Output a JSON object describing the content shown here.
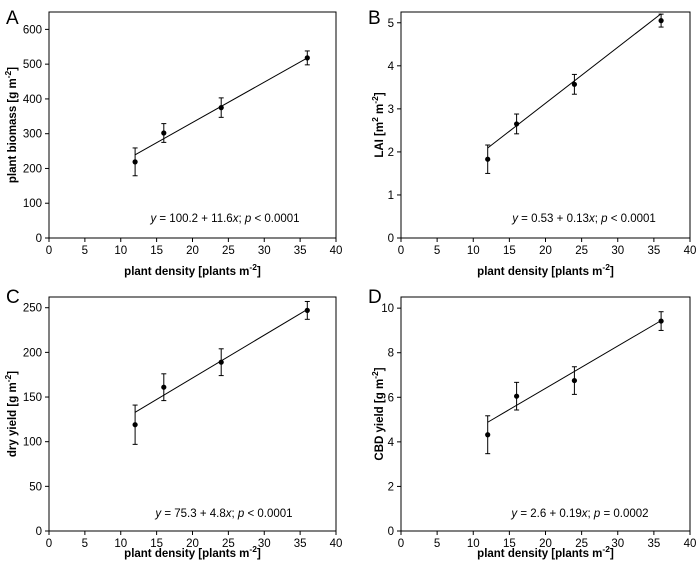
{
  "chart_data": [
    {
      "panel": "A",
      "type": "scatter",
      "xlabel": "plant density [plants m",
      "xlabel_sup": "-2",
      "xlabel_end": "]",
      "ylabel": "plant biomass [g m",
      "ylabel_sup": "-2",
      "ylabel_end": "]",
      "xlim": [
        0,
        40
      ],
      "ylim": [
        0,
        650
      ],
      "xticks": [
        0,
        5,
        10,
        15,
        20,
        25,
        30,
        35,
        40
      ],
      "yticks": [
        0,
        100,
        200,
        300,
        400,
        500,
        600
      ],
      "x": [
        12,
        16,
        24,
        36
      ],
      "y": [
        219,
        302,
        375,
        518
      ],
      "err": [
        40,
        27,
        28,
        20
      ],
      "fit": {
        "intercept": 100.2,
        "slope": 11.6
      },
      "equation": {
        "lhs": "y",
        "rhs": " = 100.2 + 11.6",
        "var": "x",
        "sep": "; ",
        "p": "p",
        "ptext": " < 0.0001"
      }
    },
    {
      "panel": "B",
      "type": "scatter",
      "xlabel": "plant density [plants m",
      "xlabel_sup": "-2",
      "xlabel_end": "]",
      "ylabel": "LAI [m",
      "ylabel_sup": "2",
      "ylabel_mid": " m",
      "ylabel_sup2": "-2",
      "ylabel_end": "]",
      "xlim": [
        0,
        40
      ],
      "ylim": [
        0,
        5.25
      ],
      "xticks": [
        0,
        5,
        10,
        15,
        20,
        25,
        30,
        35,
        40
      ],
      "yticks": [
        0,
        1,
        2,
        3,
        4,
        5
      ],
      "x": [
        12,
        16,
        24,
        36
      ],
      "y": [
        1.83,
        2.65,
        3.57,
        5.05
      ],
      "err": [
        0.33,
        0.23,
        0.23,
        0.15
      ],
      "fit": {
        "intercept": 0.53,
        "slope": 0.13
      },
      "equation": {
        "lhs": "y",
        "rhs": " = 0.53 + 0.13",
        "var": "x",
        "sep": "; ",
        "p": "p",
        "ptext": " < 0.0001"
      }
    },
    {
      "panel": "C",
      "type": "scatter",
      "xlabel": "plant density [plants m",
      "xlabel_sup": "-2",
      "xlabel_end": "]",
      "ylabel": "dry yield [g m",
      "ylabel_sup": "-2",
      "ylabel_end": "]",
      "xlim": [
        0,
        40
      ],
      "ylim": [
        0,
        262
      ],
      "xticks": [
        0,
        5,
        10,
        15,
        20,
        25,
        30,
        35,
        40
      ],
      "yticks": [
        0,
        50,
        100,
        150,
        200,
        250
      ],
      "x": [
        12,
        16,
        24,
        36
      ],
      "y": [
        119,
        161,
        189,
        247
      ],
      "err": [
        22,
        15,
        15,
        10
      ],
      "fit": {
        "intercept": 75.3,
        "slope": 4.8
      },
      "equation": {
        "lhs": "y",
        "rhs": " = 75.3 + 4.8",
        "var": "x",
        "sep": "; ",
        "p": "p",
        "ptext": " < 0.0001"
      }
    },
    {
      "panel": "D",
      "type": "scatter",
      "xlabel": "plant density [plants m",
      "xlabel_sup": "-2",
      "xlabel_end": "]",
      "ylabel": "CBD yield [g m",
      "ylabel_sup": "-2",
      "ylabel_end": "]",
      "xlim": [
        0,
        40
      ],
      "ylim": [
        0,
        10.5
      ],
      "xticks": [
        0,
        5,
        10,
        15,
        20,
        25,
        30,
        35,
        40
      ],
      "yticks": [
        0,
        2,
        4,
        6,
        8,
        10
      ],
      "x": [
        12,
        16,
        24,
        36
      ],
      "y": [
        4.32,
        6.05,
        6.75,
        9.42
      ],
      "err": [
        0.85,
        0.62,
        0.62,
        0.42
      ],
      "fit": {
        "intercept": 2.6,
        "slope": 0.19
      },
      "equation": {
        "lhs": "y",
        "rhs": " = 2.6 + 0.19",
        "var": "x",
        "sep": "; ",
        "p": "p",
        "ptext": " = 0.0002"
      }
    }
  ]
}
